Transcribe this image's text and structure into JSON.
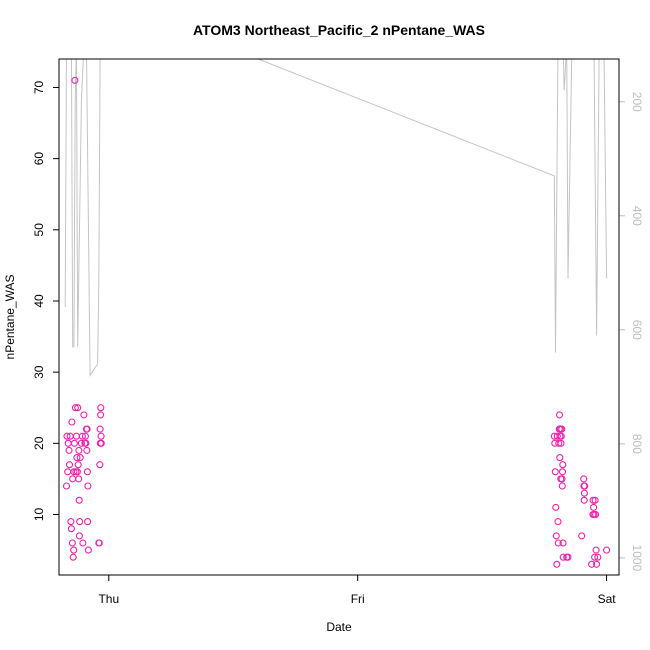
{
  "chart_data": {
    "type": "scatter",
    "title": "ATOM3 Northeast_Pacific_2 nPentane_WAS",
    "xlabel": "Date",
    "ylabel": "nPentane_WAS",
    "x_axis": {
      "type": "date",
      "tick_labels": [
        "Thu",
        "Fri",
        "Sat"
      ],
      "tick_dates": [
        "Thu",
        "Fri",
        "Sat"
      ],
      "range_days": [
        -0.2,
        2.05
      ]
    },
    "y_axis": {
      "range": [
        1.5,
        74
      ],
      "ticks": [
        10,
        20,
        30,
        40,
        50,
        60,
        70
      ]
    },
    "y2_axis": {
      "range": [
        1030,
        125
      ],
      "reversed": true,
      "ticks": [
        200,
        400,
        600,
        800,
        1000
      ],
      "color": "#bdbdbd"
    },
    "grid": false,
    "point_color": "#ee22aa",
    "series": [
      {
        "values": [
          {
            "x": -0.17,
            "y": 14
          },
          {
            "x": -0.168,
            "y": 21
          },
          {
            "x": -0.165,
            "y": 16
          },
          {
            "x": -0.163,
            "y": 20
          },
          {
            "x": -0.16,
            "y": 19
          },
          {
            "x": -0.158,
            "y": 17
          },
          {
            "x": -0.155,
            "y": 21
          },
          {
            "x": -0.152,
            "y": 9
          },
          {
            "x": -0.15,
            "y": 8
          },
          {
            "x": -0.148,
            "y": 23
          },
          {
            "x": -0.146,
            "y": 6
          },
          {
            "x": -0.145,
            "y": 15
          },
          {
            "x": -0.143,
            "y": 4
          },
          {
            "x": -0.141,
            "y": 5
          },
          {
            "x": -0.14,
            "y": 16
          },
          {
            "x": -0.138,
            "y": 20
          },
          {
            "x": -0.136,
            "y": 71
          },
          {
            "x": -0.134,
            "y": 25
          },
          {
            "x": -0.132,
            "y": 16
          },
          {
            "x": -0.13,
            "y": 21
          },
          {
            "x": -0.128,
            "y": 18
          },
          {
            "x": -0.126,
            "y": 16
          },
          {
            "x": -0.125,
            "y": 25
          },
          {
            "x": -0.123,
            "y": 17
          },
          {
            "x": -0.121,
            "y": 15
          },
          {
            "x": -0.12,
            "y": 19
          },
          {
            "x": -0.119,
            "y": 12
          },
          {
            "x": -0.118,
            "y": 7
          },
          {
            "x": -0.117,
            "y": 9
          },
          {
            "x": -0.115,
            "y": 18
          },
          {
            "x": -0.11,
            "y": 20
          },
          {
            "x": -0.106,
            "y": 21
          },
          {
            "x": -0.104,
            "y": 6
          },
          {
            "x": -0.1,
            "y": 24
          },
          {
            "x": -0.096,
            "y": 20
          },
          {
            "x": -0.094,
            "y": 21
          },
          {
            "x": -0.092,
            "y": 20
          },
          {
            "x": -0.09,
            "y": 22
          },
          {
            "x": -0.088,
            "y": 19
          },
          {
            "x": -0.087,
            "y": 22
          },
          {
            "x": -0.086,
            "y": 16
          },
          {
            "x": -0.085,
            "y": 9
          },
          {
            "x": -0.084,
            "y": 14
          },
          {
            "x": -0.082,
            "y": 5
          },
          {
            "x": -0.04,
            "y": 6
          },
          {
            "x": -0.038,
            "y": 6
          },
          {
            "x": -0.036,
            "y": 17
          },
          {
            "x": -0.035,
            "y": 22
          },
          {
            "x": -0.034,
            "y": 20
          },
          {
            "x": -0.033,
            "y": 24
          },
          {
            "x": -0.032,
            "y": 25
          },
          {
            "x": -0.031,
            "y": 21
          },
          {
            "x": -0.03,
            "y": 20
          },
          {
            "x": 1.79,
            "y": 21
          },
          {
            "x": 1.792,
            "y": 20
          },
          {
            "x": 1.794,
            "y": 16
          },
          {
            "x": 1.796,
            "y": 11
          },
          {
            "x": 1.798,
            "y": 7
          },
          {
            "x": 1.8,
            "y": 3
          },
          {
            "x": 1.802,
            "y": 21
          },
          {
            "x": 1.805,
            "y": 9
          },
          {
            "x": 1.806,
            "y": 6
          },
          {
            "x": 1.808,
            "y": 20
          },
          {
            "x": 1.81,
            "y": 22
          },
          {
            "x": 1.811,
            "y": 24
          },
          {
            "x": 1.812,
            "y": 18
          },
          {
            "x": 1.813,
            "y": 21
          },
          {
            "x": 1.815,
            "y": 22
          },
          {
            "x": 1.816,
            "y": 15
          },
          {
            "x": 1.817,
            "y": 20
          },
          {
            "x": 1.818,
            "y": 21
          },
          {
            "x": 1.82,
            "y": 22
          },
          {
            "x": 1.821,
            "y": 15
          },
          {
            "x": 1.822,
            "y": 14
          },
          {
            "x": 1.823,
            "y": 16
          },
          {
            "x": 1.824,
            "y": 17
          },
          {
            "x": 1.825,
            "y": 6
          },
          {
            "x": 1.826,
            "y": 4
          },
          {
            "x": 1.84,
            "y": 4
          },
          {
            "x": 1.845,
            "y": 4
          },
          {
            "x": 1.9,
            "y": 7
          },
          {
            "x": 1.908,
            "y": 15
          },
          {
            "x": 1.909,
            "y": 14
          },
          {
            "x": 1.91,
            "y": 12
          },
          {
            "x": 1.911,
            "y": 13
          },
          {
            "x": 1.912,
            "y": 14
          },
          {
            "x": 1.94,
            "y": 3
          },
          {
            "x": 1.945,
            "y": 10
          },
          {
            "x": 1.946,
            "y": 12
          },
          {
            "x": 1.948,
            "y": 11
          },
          {
            "x": 1.95,
            "y": 10
          },
          {
            "x": 1.952,
            "y": 4
          },
          {
            "x": 1.954,
            "y": 12
          },
          {
            "x": 1.956,
            "y": 10
          },
          {
            "x": 1.958,
            "y": 5
          },
          {
            "x": 1.96,
            "y": 3
          },
          {
            "x": 1.965,
            "y": 4
          },
          {
            "x": 2.0,
            "y": 5
          }
        ]
      }
    ],
    "altitude_series": {
      "axis": "y2",
      "color": "#c4c4c4",
      "values": [
        {
          "x": -0.175,
          "y": 560
        },
        {
          "x": -0.17,
          "y": 100
        },
        {
          "x": -0.16,
          "y": 80
        },
        {
          "x": -0.15,
          "y": 100
        },
        {
          "x": -0.145,
          "y": 630
        },
        {
          "x": -0.14,
          "y": 630
        },
        {
          "x": -0.135,
          "y": 200
        },
        {
          "x": -0.13,
          "y": 100
        },
        {
          "x": -0.125,
          "y": 630
        },
        {
          "x": -0.11,
          "y": 200
        },
        {
          "x": -0.1,
          "y": 100
        },
        {
          "x": -0.09,
          "y": 100
        },
        {
          "x": -0.075,
          "y": 680
        },
        {
          "x": -0.06,
          "y": 670
        },
        {
          "x": -0.045,
          "y": 660
        },
        {
          "x": -0.04,
          "y": 520
        },
        {
          "x": -0.035,
          "y": 125
        },
        {
          "x": 0.6,
          "y": 125
        },
        {
          "x": 1.79,
          "y": 330
        },
        {
          "x": 1.795,
          "y": 640
        },
        {
          "x": 1.8,
          "y": 360
        },
        {
          "x": 1.805,
          "y": 100
        },
        {
          "x": 1.825,
          "y": 100
        },
        {
          "x": 1.83,
          "y": 180
        },
        {
          "x": 1.84,
          "y": 100
        },
        {
          "x": 1.845,
          "y": 510
        },
        {
          "x": 1.86,
          "y": 125
        },
        {
          "x": 1.95,
          "y": 125
        },
        {
          "x": 1.96,
          "y": 610
        },
        {
          "x": 1.97,
          "y": 125
        },
        {
          "x": 1.99,
          "y": 125
        },
        {
          "x": 2.0,
          "y": 510
        }
      ]
    }
  }
}
